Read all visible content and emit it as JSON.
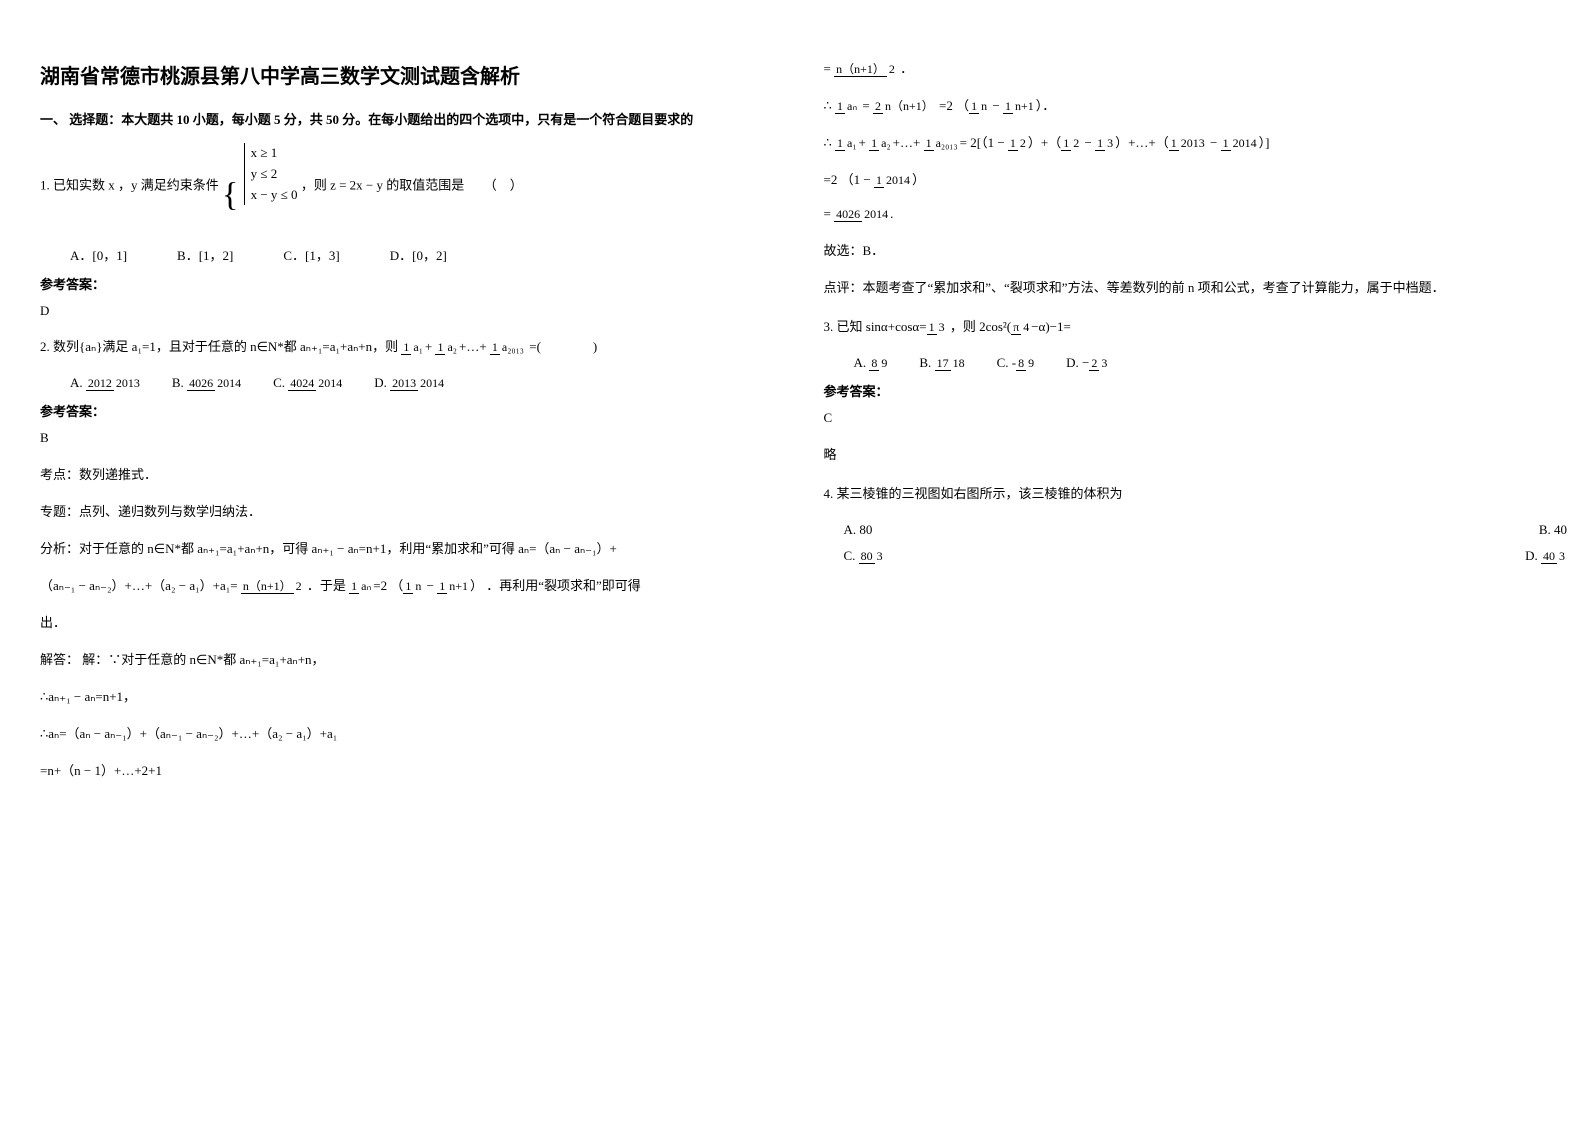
{
  "title": "湖南省常德市桃源县第八中学高三数学文测试题含解析",
  "section1": "一、 选择题：本大题共 10 小题，每小题 5 分，共 50 分。在每小题给出的四个选项中，只有是一个符合题目要求的",
  "q1": {
    "prefix": "1. 已知实数 x ，y 满足约束条件",
    "cond1": "x ≥ 1",
    "cond2": "y ≤ 2",
    "cond3": "x − y ≤ 0",
    "suffix": "，则 z = 2x − y 的取值范围是　　（　）",
    "A": "A．[0，1]",
    "B": "B．[1，2]",
    "C": "C．[1，3]",
    "D": "D．[0，2]",
    "ansLabel": "参考答案：",
    "ans": "D"
  },
  "q2": {
    "stem_a": "2. 数列{aₙ}满足 a₁=1，且对于任意的 n∈N*都 aₙ₊₁=a₁+aₙ+n，则",
    "frac_expr_pre": "",
    "tail": "=(　　　　)",
    "A_num": "2012",
    "A_den": "2013",
    "A_lab": "A.",
    "B_num": "4026",
    "B_den": "2014",
    "B_lab": "B.",
    "C_num": "4024",
    "C_den": "2014",
    "C_lab": "C.",
    "D_num": "2013",
    "D_den": "2014",
    "D_lab": "D.",
    "ansLabel": "参考答案：",
    "ans": "B",
    "topic": "考点：数列递推式．",
    "special": "专题：点列、递归数列与数学归纳法．",
    "analysis_a": "分析：对于任意的 n∈N*都 aₙ₊₁=a₁+aₙ+n，可得 aₙ₊₁ − aₙ=n+1，利用“累加求和”可得 aₙ=（aₙ − aₙ₋₁）+",
    "analysis_b_pre": "（aₙ₋₁ − aₙ₋₂）+…+（a₂ − a₁）+a₁=",
    "analysis_b_mid": "．于是",
    "analysis_b_suf": "．再利用“裂项求和”即可得",
    "analysis_c": "出．",
    "solve1": "解答： 解：∵对于任意的 n∈N*都 aₙ₊₁=a₁+aₙ+n，",
    "solve2": "∴aₙ₊₁ − aₙ=n+1，",
    "solve3": "∴aₙ=（aₙ − aₙ₋₁）+（aₙ₋₁ − aₙ₋₂）+…+（a₂ − a₁）+a₁",
    "solve4": "=n+（n − 1）+…+2+1"
  },
  "col2": {
    "l1_pre": "=",
    "l1_num": "n（n+1）",
    "l1_den": "2",
    "l1_suf": "．",
    "l2_pre": "∴",
    "l2_num1": "1",
    "l2_den1": "aₙ",
    "l2_eq": "=",
    "l2_num2": "2",
    "l2_den2": "n（n+1）",
    "l2_suf": "=2",
    "l2_paren": "（",
    "l2_num3": "1",
    "l2_den3": "n",
    "l2_minus": " − ",
    "l2_num4": "1",
    "l2_den4": "n+1",
    "l2_parend": "）．",
    "l3_pre": "∴",
    "l3_num1": "1",
    "l3_den1": "a₁",
    "l3_plus": "+",
    "l3_num2": "1",
    "l3_den2": "a₂",
    "l3_dots": "+…+",
    "l3_num3": "1",
    "l3_den3": "a₂₀₁₃",
    "l3_eq": "=",
    "l3_rest": "2[（1 − ",
    "l3_half_num": "1",
    "l3_half_den": "2",
    "l3_r2": "）+（",
    "l3_r2a_num": "1",
    "l3_r2a_den": "2",
    "l3_r2m": " − ",
    "l3_r2b_num": "1",
    "l3_r2b_den": "3",
    "l3_r3": "）+…+（",
    "l3_r3a_num": "1",
    "l3_r3a_den": "2013",
    "l3_r3m": " − ",
    "l3_r3b_num": "1",
    "l3_r3b_den": "2014",
    "l3_r4": "）]",
    "l4_pre": "=2",
    "l4_p": "（1 − ",
    "l4_num": "1",
    "l4_den": "2014",
    "l4_pe": "）",
    "l5_pre": "=",
    "l5_num": "4026",
    "l5_den": "2014",
    "l5_suf": ".",
    "l6": "故选：B．",
    "l7": "点评：本题考查了“累加求和”、“裂项求和”方法、等差数列的前 n 项和公式，考查了计算能力，属于中档题．"
  },
  "q3": {
    "stem_a": "3. 已知",
    "stem_b": "sinα+cosα=",
    "stem_bn": "1",
    "stem_bd": "3",
    "stem_c": "，则",
    "stem_d": "2cos²(",
    "stem_dn": "π",
    "stem_dd": "4",
    "stem_e": "−α)−1=",
    "A_lab": "A.",
    "A_num": "8",
    "A_den": "9",
    "B_lab": "B.",
    "B_num": "17",
    "B_den": "18",
    "C_lab": "C.",
    "C_pre": "-",
    "C_num": "8",
    "C_den": "9",
    "D_lab": "D.",
    "D_pre": "−",
    "D_num": "2",
    "D_den": "3",
    "ansLabel": "参考答案：",
    "ans": "C",
    "note": "略"
  },
  "q4": {
    "stem": "4. 某三棱锥的三视图如右图所示，该三棱锥的体积为",
    "A_lab": "A.",
    "A": "80",
    "B_lab": "B.",
    "B": "40",
    "C_lab": "C.",
    "C_num": "80",
    "C_den": "3",
    "D_lab": "D.",
    "D_num": "40",
    "D_den": "3"
  }
}
